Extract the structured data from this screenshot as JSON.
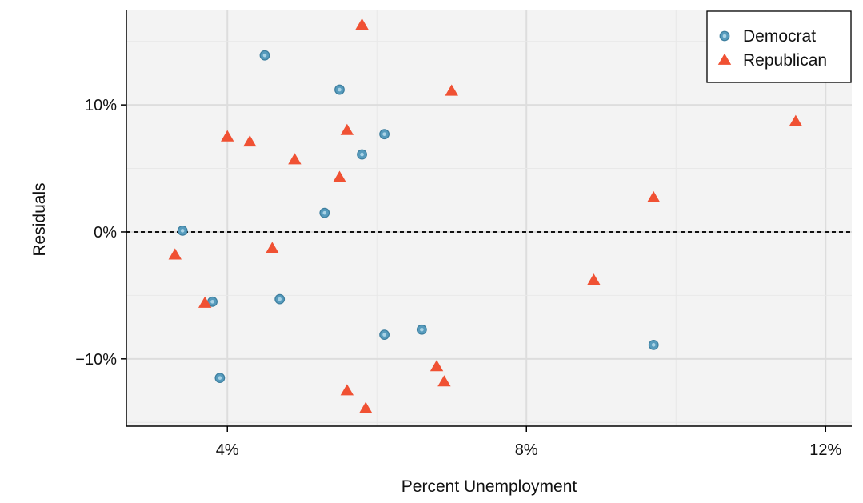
{
  "chart_data": {
    "type": "scatter",
    "xlabel": "Percent Unemployment",
    "ylabel": "Residuals",
    "x_unit": "%",
    "y_unit": "%",
    "xlim": [
      2.65,
      12.35
    ],
    "ylim": [
      -15.3,
      17.5
    ],
    "x_ticks": [
      4,
      8,
      12
    ],
    "x_tick_labels": [
      "4%",
      "8%",
      "12%"
    ],
    "y_ticks": [
      -10,
      0,
      10
    ],
    "y_tick_labels": [
      "−10%",
      "0%",
      "10%"
    ],
    "grid": true,
    "reference_line": {
      "y": 0,
      "style": "dashed"
    },
    "legend_position": "top-right",
    "colors": {
      "background": "#f3f3f3",
      "grid_major": "#dddddd",
      "grid_minor": "#e8e8e8",
      "democrat": "#569bbd",
      "republican": "#f05133",
      "axis": "#000000"
    },
    "series": [
      {
        "name": "Democrat",
        "marker": "circle",
        "color": "#569bbd",
        "points": [
          {
            "x": 3.4,
            "y": 0.1
          },
          {
            "x": 3.8,
            "y": -5.5
          },
          {
            "x": 3.9,
            "y": -11.5
          },
          {
            "x": 4.5,
            "y": 13.9
          },
          {
            "x": 4.7,
            "y": -5.3
          },
          {
            "x": 5.3,
            "y": 1.5
          },
          {
            "x": 5.5,
            "y": 11.2
          },
          {
            "x": 5.8,
            "y": 6.1
          },
          {
            "x": 6.1,
            "y": 7.7
          },
          {
            "x": 6.1,
            "y": -8.1
          },
          {
            "x": 6.6,
            "y": -7.7
          },
          {
            "x": 9.7,
            "y": -8.9
          }
        ]
      },
      {
        "name": "Republican",
        "marker": "triangle",
        "color": "#f05133",
        "points": [
          {
            "x": 3.3,
            "y": -1.8
          },
          {
            "x": 3.7,
            "y": -5.6
          },
          {
            "x": 4.0,
            "y": 7.5
          },
          {
            "x": 4.3,
            "y": 7.1
          },
          {
            "x": 4.6,
            "y": -1.3
          },
          {
            "x": 4.9,
            "y": 5.7
          },
          {
            "x": 5.5,
            "y": 4.3
          },
          {
            "x": 5.6,
            "y": 8.0
          },
          {
            "x": 5.6,
            "y": -12.5
          },
          {
            "x": 5.8,
            "y": 16.3
          },
          {
            "x": 5.85,
            "y": -13.9
          },
          {
            "x": 6.8,
            "y": -10.6
          },
          {
            "x": 6.9,
            "y": -11.8
          },
          {
            "x": 7.0,
            "y": 11.1
          },
          {
            "x": 8.9,
            "y": -3.8
          },
          {
            "x": 9.7,
            "y": 2.7
          },
          {
            "x": 11.6,
            "y": 8.7
          }
        ]
      }
    ]
  }
}
